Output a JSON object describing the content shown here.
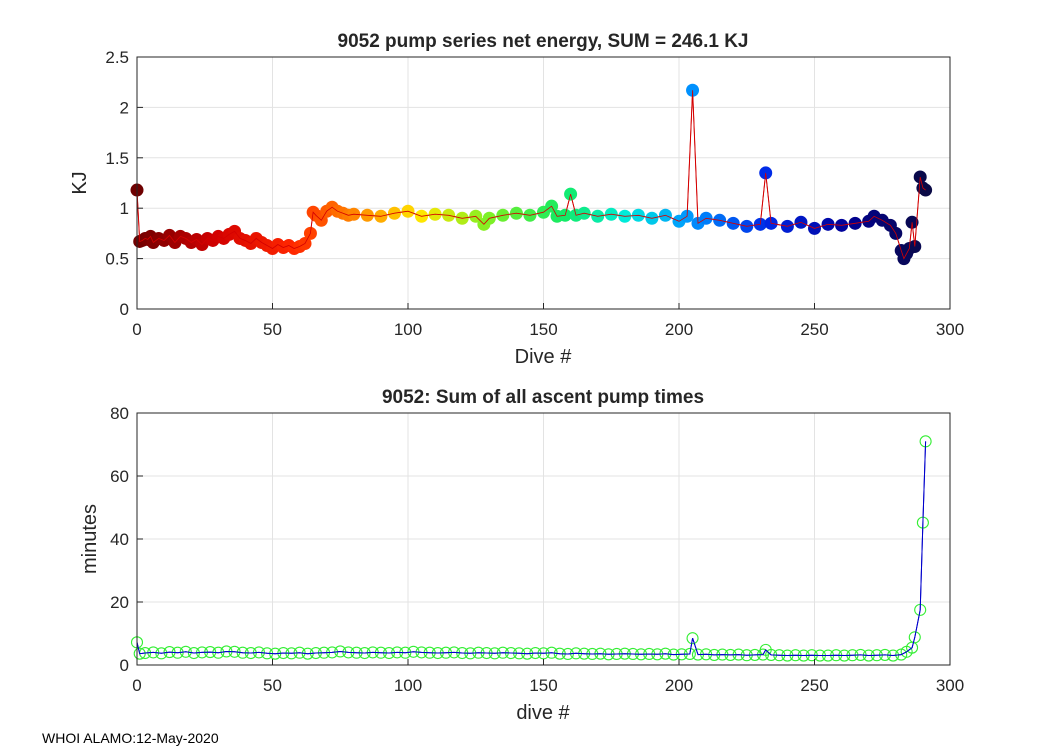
{
  "footer": "WHOI ALAMO:12-May-2020",
  "chart_data": [
    {
      "type": "scatter",
      "title": "9052 pump series net energy, SUM = 246.1 KJ",
      "xlabel": "Dive #",
      "ylabel": "KJ",
      "xlim": [
        0,
        300
      ],
      "ylim": [
        0,
        2.5
      ],
      "xticks": [
        "0",
        "50",
        "100",
        "150",
        "200",
        "250",
        "300"
      ],
      "yticks": [
        "0",
        "0.5",
        "1",
        "1.5",
        "2",
        "2.5"
      ],
      "xtick_values": [
        0,
        50,
        100,
        150,
        200,
        250,
        300
      ],
      "ytick_values": [
        0,
        0.5,
        1,
        1.5,
        2,
        2.5
      ],
      "grid": true,
      "marker": "filled-circle",
      "line_color": "#d40000",
      "colormap": "jet-like (dark red to dark blue by dive #)",
      "x": [
        0,
        1,
        2,
        3,
        4,
        5,
        6,
        8,
        10,
        12,
        14,
        16,
        18,
        20,
        22,
        24,
        26,
        28,
        30,
        32,
        34,
        36,
        38,
        40,
        42,
        44,
        46,
        48,
        50,
        52,
        54,
        56,
        58,
        60,
        62,
        64,
        65,
        66,
        68,
        70,
        72,
        74,
        76,
        78,
        80,
        85,
        90,
        95,
        100,
        105,
        110,
        115,
        120,
        125,
        128,
        130,
        135,
        140,
        145,
        150,
        153,
        155,
        158,
        160,
        162,
        165,
        170,
        175,
        180,
        185,
        190,
        195,
        200,
        203,
        205,
        207,
        210,
        215,
        220,
        225,
        230,
        232,
        234,
        240,
        245,
        250,
        255,
        260,
        265,
        270,
        272,
        275,
        278,
        280,
        282,
        283,
        284,
        285,
        286,
        287,
        289,
        290,
        291
      ],
      "y": [
        1.18,
        0.67,
        0.68,
        0.7,
        0.69,
        0.72,
        0.66,
        0.7,
        0.68,
        0.73,
        0.66,
        0.72,
        0.7,
        0.66,
        0.69,
        0.64,
        0.7,
        0.68,
        0.72,
        0.7,
        0.74,
        0.77,
        0.7,
        0.68,
        0.65,
        0.7,
        0.66,
        0.63,
        0.6,
        0.64,
        0.61,
        0.63,
        0.6,
        0.62,
        0.65,
        0.75,
        0.96,
        0.93,
        0.88,
        0.97,
        1.01,
        0.97,
        0.95,
        0.93,
        0.94,
        0.93,
        0.92,
        0.95,
        0.97,
        0.92,
        0.94,
        0.93,
        0.9,
        0.92,
        0.84,
        0.9,
        0.93,
        0.95,
        0.93,
        0.96,
        1.02,
        0.92,
        0.93,
        1.14,
        0.93,
        0.95,
        0.92,
        0.94,
        0.92,
        0.93,
        0.9,
        0.93,
        0.87,
        0.92,
        2.17,
        0.85,
        0.9,
        0.88,
        0.85,
        0.82,
        0.84,
        1.35,
        0.85,
        0.82,
        0.86,
        0.8,
        0.84,
        0.83,
        0.85,
        0.87,
        0.92,
        0.88,
        0.83,
        0.75,
        0.58,
        0.5,
        0.55,
        0.6,
        0.86,
        0.62,
        1.31,
        1.2,
        1.18
      ]
    },
    {
      "type": "line",
      "title": "9052: Sum of all ascent pump times",
      "xlabel": "dive #",
      "ylabel": "minutes",
      "xlim": [
        0,
        300
      ],
      "ylim": [
        0,
        80
      ],
      "xticks": [
        "0",
        "50",
        "100",
        "150",
        "200",
        "250",
        "300"
      ],
      "yticks": [
        "0",
        "20",
        "40",
        "60",
        "80"
      ],
      "xtick_values": [
        0,
        50,
        100,
        150,
        200,
        250,
        300
      ],
      "ytick_values": [
        0,
        20,
        40,
        60,
        80
      ],
      "grid": true,
      "marker": "open-circle",
      "marker_color": "#33ee33",
      "line_color": "#0000cc",
      "x": [
        0,
        1,
        3,
        6,
        9,
        12,
        15,
        18,
        21,
        24,
        27,
        30,
        33,
        36,
        39,
        42,
        45,
        48,
        51,
        54,
        57,
        60,
        63,
        66,
        69,
        72,
        75,
        78,
        81,
        84,
        87,
        90,
        93,
        96,
        99,
        102,
        105,
        108,
        111,
        114,
        117,
        120,
        123,
        126,
        129,
        132,
        135,
        138,
        141,
        144,
        147,
        150,
        153,
        156,
        159,
        162,
        165,
        168,
        171,
        174,
        177,
        180,
        183,
        186,
        189,
        192,
        195,
        198,
        201,
        204,
        205,
        207,
        210,
        213,
        216,
        219,
        222,
        225,
        228,
        231,
        232,
        234,
        237,
        240,
        243,
        246,
        249,
        252,
        255,
        258,
        261,
        264,
        267,
        270,
        273,
        276,
        279,
        282,
        284,
        286,
        287,
        289,
        290,
        291
      ],
      "y": [
        7.2,
        3.6,
        3.8,
        4.0,
        3.7,
        4.1,
        3.9,
        4.2,
        3.8,
        4.0,
        4.1,
        3.9,
        4.3,
        4.2,
        3.9,
        3.8,
        4.0,
        3.7,
        3.6,
        3.8,
        3.7,
        3.9,
        3.6,
        3.8,
        3.9,
        4.0,
        4.3,
        4.0,
        3.9,
        3.8,
        4.0,
        3.9,
        3.8,
        4.0,
        3.9,
        4.2,
        4.0,
        3.9,
        3.8,
        3.9,
        4.0,
        3.8,
        3.7,
        3.9,
        3.8,
        3.7,
        3.9,
        3.8,
        3.7,
        3.6,
        3.8,
        3.7,
        3.9,
        3.6,
        3.5,
        3.7,
        3.6,
        3.5,
        3.6,
        3.4,
        3.5,
        3.6,
        3.5,
        3.4,
        3.5,
        3.4,
        3.6,
        3.3,
        3.4,
        3.5,
        8.5,
        3.3,
        3.4,
        3.2,
        3.3,
        3.2,
        3.3,
        3.1,
        3.2,
        3.3,
        4.8,
        3.2,
        3.1,
        3.0,
        3.1,
        3.0,
        3.1,
        3.0,
        3.0,
        3.1,
        3.0,
        3.1,
        3.2,
        3.0,
        3.1,
        3.2,
        3.0,
        3.3,
        4.2,
        5.5,
        8.8,
        17.5,
        45.2,
        71.0
      ]
    }
  ]
}
